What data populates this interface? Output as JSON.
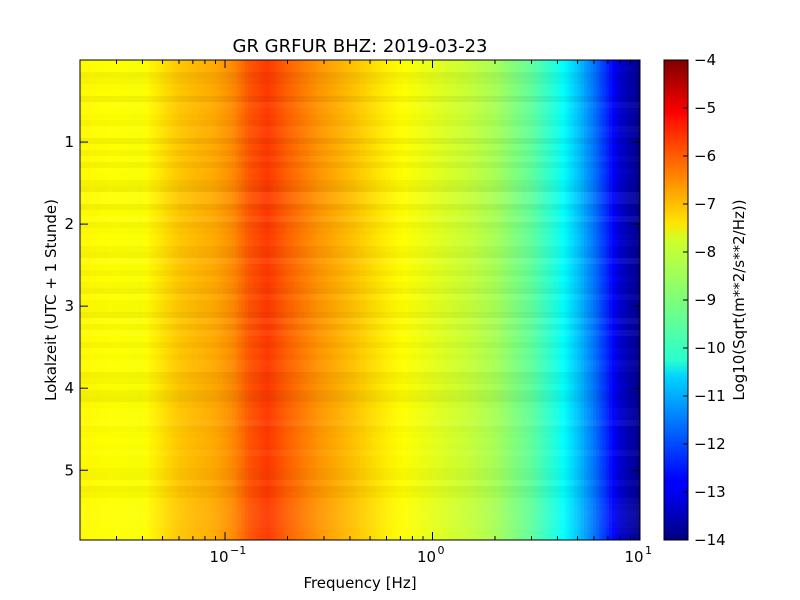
{
  "chart_data": {
    "type": "heatmap",
    "title": "GR GRFUR BHZ: 2019-03-23",
    "xlabel": "Frequency [Hz]",
    "ylabel": "Lokalzeit (UTC + 1 Stunde)",
    "colorbar_label": "Log10(Sqrt(m**2/s**2/Hz))",
    "x_scale": "log",
    "xlim": [
      0.02,
      10
    ],
    "ylim": [
      5.85,
      0
    ],
    "x_ticks": [
      {
        "value": 0.1,
        "base": "10",
        "exp": "−1"
      },
      {
        "value": 1,
        "base": "10",
        "exp": "0"
      },
      {
        "value": 10,
        "base": "10",
        "exp": "1"
      }
    ],
    "y_ticks": [
      1,
      2,
      3,
      4,
      5
    ],
    "colorbar_ticks": [
      "−4",
      "−5",
      "−6",
      "−7",
      "−8",
      "−9",
      "−10",
      "−11",
      "−12",
      "−13",
      "−14"
    ],
    "colorbar_range": [
      -14,
      -4
    ],
    "colormap": "jet",
    "spectrum_profile": [
      {
        "freq": 0.02,
        "value": -7.7
      },
      {
        "freq": 0.04,
        "value": -7.8
      },
      {
        "freq": 0.06,
        "value": -7.2
      },
      {
        "freq": 0.09,
        "value": -6.9
      },
      {
        "freq": 0.11,
        "value": -6.6
      },
      {
        "freq": 0.13,
        "value": -6.1
      },
      {
        "freq": 0.16,
        "value": -5.8
      },
      {
        "freq": 0.2,
        "value": -6.2
      },
      {
        "freq": 0.28,
        "value": -6.7
      },
      {
        "freq": 0.4,
        "value": -7.1
      },
      {
        "freq": 0.6,
        "value": -7.6
      },
      {
        "freq": 1.0,
        "value": -8.0
      },
      {
        "freq": 1.5,
        "value": -8.3
      },
      {
        "freq": 2.0,
        "value": -8.6
      },
      {
        "freq": 3.0,
        "value": -9.3
      },
      {
        "freq": 4.0,
        "value": -10.0
      },
      {
        "freq": 5.0,
        "value": -10.8
      },
      {
        "freq": 6.0,
        "value": -11.6
      },
      {
        "freq": 7.0,
        "value": -12.4
      },
      {
        "freq": 8.0,
        "value": -13.2
      },
      {
        "freq": 10.0,
        "value": -13.9
      }
    ]
  }
}
